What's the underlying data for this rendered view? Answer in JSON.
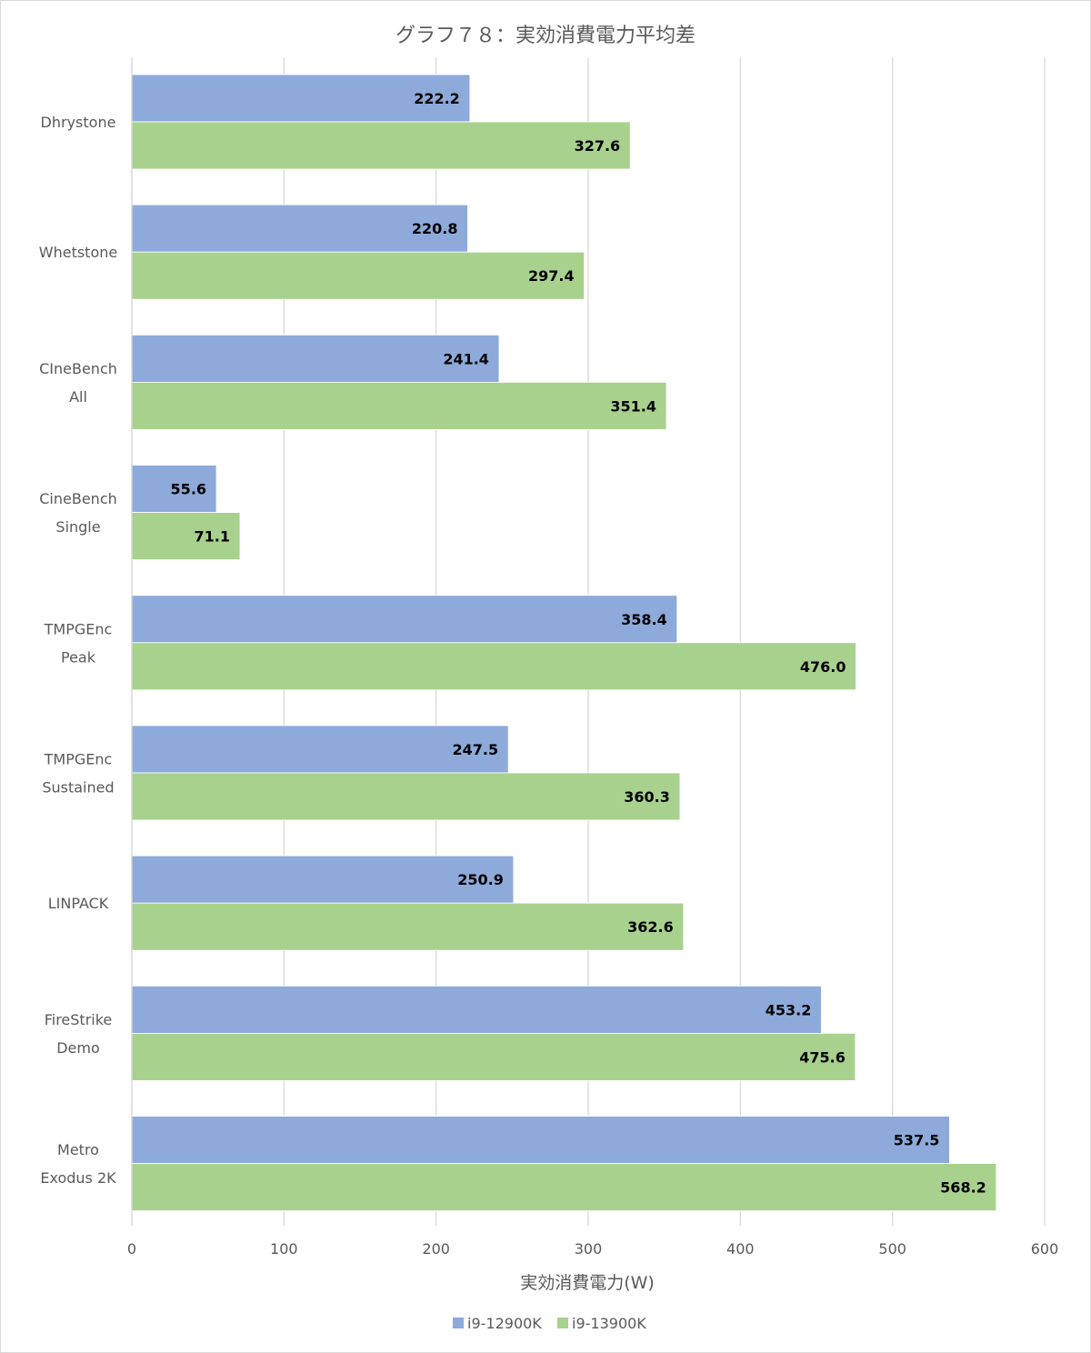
{
  "chart_data": {
    "type": "bar",
    "orientation": "horizontal",
    "title": "グラフ７８：実効消費電力平均差",
    "xlabel": "実効消費電力(W)",
    "ylabel": "",
    "xlim": [
      0,
      600
    ],
    "xticks": [
      0,
      100,
      200,
      300,
      400,
      500,
      600
    ],
    "grid": "vertical",
    "legend_position": "bottom",
    "categories": [
      [
        "Dhrystone"
      ],
      [
        "Whetstone"
      ],
      [
        "CIneBench",
        "All"
      ],
      [
        "CineBench",
        "Single"
      ],
      [
        "TMPGEnc",
        "Peak"
      ],
      [
        "TMPGEnc",
        "Sustained"
      ],
      [
        "LINPACK"
      ],
      [
        "FireStrike",
        "Demo"
      ],
      [
        "Metro",
        "Exodus 2K"
      ]
    ],
    "series": [
      {
        "name": "i9-12900K",
        "color": "#8eaadb",
        "values": [
          222.2,
          220.8,
          241.4,
          55.6,
          358.4,
          247.5,
          250.9,
          453.2,
          537.5
        ],
        "labels": [
          "222.2",
          "220.8",
          "241.4",
          "55.6",
          "358.4",
          "247.5",
          "250.9",
          "453.2",
          "537.5"
        ]
      },
      {
        "name": "i9-13900K",
        "color": "#a9d18e",
        "values": [
          327.6,
          297.4,
          351.4,
          71.1,
          476.0,
          360.3,
          362.6,
          475.6,
          568.2
        ],
        "labels": [
          "327.6",
          "297.4",
          "351.4",
          "71.1",
          "476.0",
          "360.3",
          "362.6",
          "475.6",
          "568.2"
        ]
      }
    ]
  }
}
